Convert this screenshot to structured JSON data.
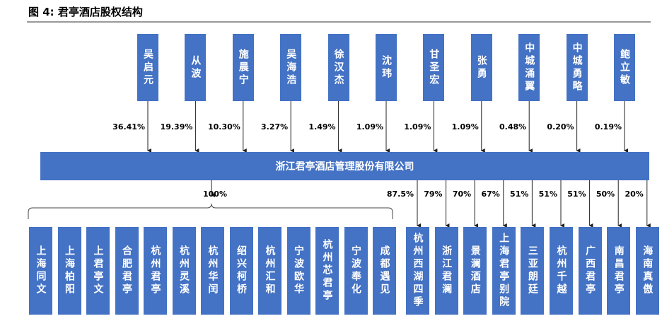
{
  "title": "图 4: 君亭酒店股权结构",
  "shareholders": [
    {
      "name": "吴启元",
      "pct": "36.41%"
    },
    {
      "name": "从波",
      "pct": "19.39%"
    },
    {
      "name": "施晨宁",
      "pct": "10.30%"
    },
    {
      "name": "吴海浩",
      "pct": "3.27%"
    },
    {
      "name": "徐汉杰",
      "pct": "1.49%"
    },
    {
      "name": "沈玮",
      "pct": "1.09%"
    },
    {
      "name": "甘圣宏",
      "pct": "1.09%"
    },
    {
      "name": "张勇",
      "pct": "1.09%"
    },
    {
      "name": "中城涌翼",
      "pct": "0.48%"
    },
    {
      "name": "中城勇略",
      "pct": "0.20%"
    },
    {
      "name": "鲍立敏",
      "pct": "0.19%"
    }
  ],
  "company": "浙江君亭酒店管理股份有限公司",
  "wholly_owned": {
    "pct": "100%",
    "companies": [
      "上海同文",
      "上海柏阳",
      "上君亭文",
      "合肥君亭",
      "杭州君亭",
      "杭州灵溪",
      "杭州华闰",
      "绍兴柯桥",
      "杭州汇和",
      "宁波欧华",
      "杭州芯君亭",
      "宁波奉化",
      "成都遇见"
    ]
  },
  "subsidiaries": [
    {
      "name": "杭州西湖四季",
      "pct": "87.5%"
    },
    {
      "name": "浙江君澜",
      "pct": "79%"
    },
    {
      "name": "景澜酒店",
      "pct": "70%"
    },
    {
      "name": "上海君亭别院",
      "pct": "67%"
    },
    {
      "name": "三亚朗廷",
      "pct": "51%"
    },
    {
      "name": "杭州千越",
      "pct": "51%"
    },
    {
      "name": "广西君亭",
      "pct": "51%"
    },
    {
      "name": "南昌君亭",
      "pct": "50%"
    },
    {
      "name": "海南真傲",
      "pct": "20%"
    }
  ]
}
